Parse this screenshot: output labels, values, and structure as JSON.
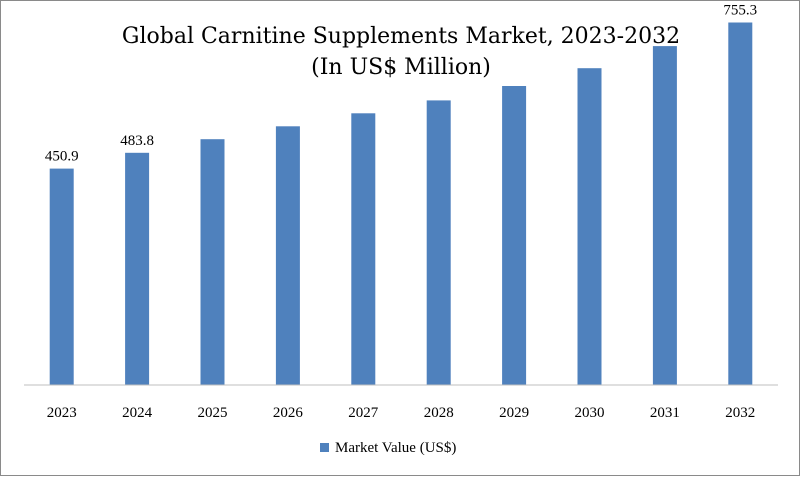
{
  "chart_data": {
    "type": "bar",
    "title_lines": [
      "Global Carnitine Supplements Market, 2023-2032",
      "(In US$ Million)"
    ],
    "categories": [
      "2023",
      "2024",
      "2025",
      "2026",
      "2027",
      "2028",
      "2029",
      "2030",
      "2031",
      "2032"
    ],
    "series": [
      {
        "name": "Market Value (US$)",
        "values": [
          450.9,
          483.8,
          512.0,
          539.0,
          566.0,
          593.0,
          623.0,
          660.0,
          706.0,
          755.3
        ],
        "color": "#4f81bd"
      }
    ],
    "data_labels": [
      "450.9",
      "483.8",
      "",
      "",
      "",
      "",
      "",
      "",
      "",
      "755.3"
    ],
    "xlabel": "",
    "ylabel": "",
    "ylim": [
      0,
      800
    ],
    "grid": false,
    "legend": "bottom"
  }
}
